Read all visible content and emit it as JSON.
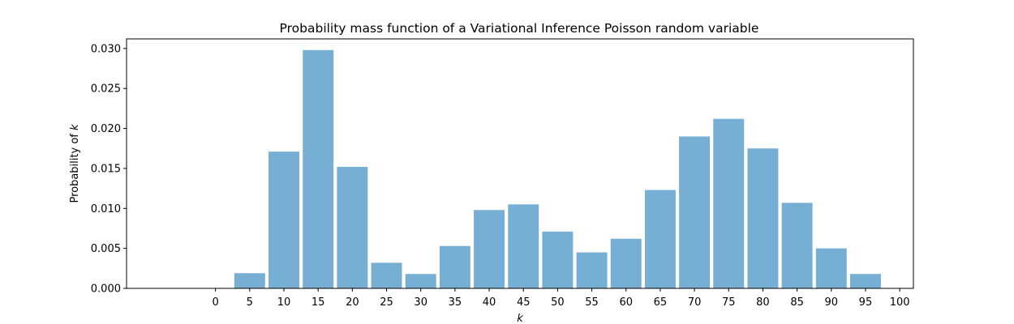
{
  "chart_data": {
    "type": "bar",
    "title": "Probability mass function of a Variational Inference Poisson random variable",
    "xlabel": "k",
    "ylabel": "Probability of",
    "ylabel_var": "k",
    "x": [
      5,
      10,
      15,
      20,
      25,
      30,
      35,
      40,
      45,
      50,
      55,
      60,
      65,
      70,
      75,
      80,
      85,
      90,
      95
    ],
    "values": [
      0.0019,
      0.0171,
      0.0298,
      0.0152,
      0.0032,
      0.0018,
      0.0053,
      0.0098,
      0.0105,
      0.0071,
      0.0045,
      0.0062,
      0.0123,
      0.019,
      0.0212,
      0.0175,
      0.0107,
      0.005,
      0.0018
    ],
    "bar_width": 4.5,
    "xlim": [
      -13,
      102
    ],
    "ylim": [
      0,
      0.0312
    ],
    "xticks": [
      0,
      5,
      10,
      15,
      20,
      25,
      30,
      35,
      40,
      45,
      50,
      55,
      60,
      65,
      70,
      75,
      80,
      85,
      90,
      95,
      100
    ],
    "xtick_labels": [
      "0",
      "5",
      "10",
      "15",
      "20",
      "25",
      "30",
      "35",
      "40",
      "45",
      "50",
      "55",
      "60",
      "65",
      "70",
      "75",
      "80",
      "85",
      "90",
      "95",
      "100"
    ],
    "yticks": [
      0,
      0.005,
      0.01,
      0.015,
      0.02,
      0.025,
      0.03
    ],
    "ytick_labels": [
      "0.000",
      "0.005",
      "0.010",
      "0.015",
      "0.020",
      "0.025",
      "0.030"
    ],
    "bar_color": "#77aed3",
    "grid": false,
    "legend": "none"
  }
}
